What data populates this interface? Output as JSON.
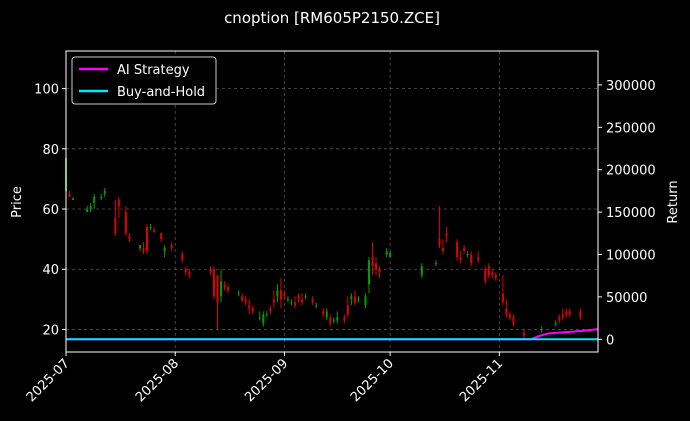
{
  "chart_data": {
    "type": "candlestick",
    "title": "cnoption [RM605P2150.ZCE]",
    "ylabel_left": "Price",
    "ylabel_right": "Return",
    "xlim": [
      "2025-07-01",
      "2025-11-29"
    ],
    "ylim_left": [
      12.5,
      112.5
    ],
    "ylim_right": [
      -15000,
      340000
    ],
    "x_ticks": [
      "2025-07",
      "2025-08",
      "2025-09",
      "2025-10",
      "2025-11"
    ],
    "x_tick_dates": [
      "2025-07-01",
      "2025-08-01",
      "2025-09-01",
      "2025-10-01",
      "2025-11-01"
    ],
    "y_ticks_left": [
      20,
      40,
      60,
      80,
      100
    ],
    "y_ticks_right": [
      0,
      50000,
      100000,
      150000,
      200000,
      250000,
      300000
    ],
    "grid": true,
    "legend": "upper-left",
    "colors": {
      "up": "#00a000",
      "down": "#e00000",
      "ai": "#ff00ff",
      "bh": "#00e5ff",
      "grid": "#555555",
      "axis": "#ffffff"
    },
    "series": [
      {
        "name": "AI Strategy",
        "points": [
          [
            "2025-07-01",
            0
          ],
          [
            "2025-11-10",
            0
          ],
          [
            "2025-11-12",
            3500
          ],
          [
            "2025-11-15",
            7000
          ],
          [
            "2025-11-20",
            8500
          ],
          [
            "2025-11-25",
            10000
          ],
          [
            "2025-11-29",
            12000
          ]
        ]
      },
      {
        "name": "Buy-and-Hold",
        "points": [
          [
            "2025-07-01",
            0
          ],
          [
            "2025-11-29",
            0
          ]
        ]
      }
    ],
    "candles": [
      [
        "2025-07-01",
        66,
        77,
        66,
        77
      ],
      [
        "2025-07-02",
        65,
        66,
        64,
        64
      ],
      [
        "2025-07-03",
        63,
        64,
        63,
        63.5
      ],
      [
        "2025-07-07",
        59,
        61,
        59,
        60
      ],
      [
        "2025-07-08",
        60,
        62,
        59,
        61
      ],
      [
        "2025-07-09",
        62,
        65,
        60,
        64
      ],
      [
        "2025-07-11",
        64,
        65,
        63,
        64
      ],
      [
        "2025-07-12",
        65,
        67,
        64,
        66
      ],
      [
        "2025-07-15",
        57,
        63,
        51,
        52
      ],
      [
        "2025-07-16",
        63,
        64,
        57,
        61
      ],
      [
        "2025-07-18",
        59,
        61,
        51,
        52
      ],
      [
        "2025-07-19",
        51,
        52,
        49,
        50
      ],
      [
        "2025-07-22",
        47,
        48,
        46,
        48
      ],
      [
        "2025-07-23",
        47,
        49,
        45,
        46
      ],
      [
        "2025-07-24",
        54,
        55,
        45,
        46
      ],
      [
        "2025-07-25",
        54,
        55,
        53,
        54
      ],
      [
        "2025-07-26",
        53,
        54,
        52,
        52.5
      ],
      [
        "2025-07-28",
        52,
        52,
        49,
        50
      ],
      [
        "2025-07-29",
        46,
        48,
        44,
        47
      ],
      [
        "2025-07-31",
        48,
        49,
        46,
        47
      ],
      [
        "2025-08-03",
        45,
        46,
        42,
        43
      ],
      [
        "2025-08-04",
        40,
        41,
        38,
        39
      ],
      [
        "2025-08-05",
        39,
        40,
        37,
        38
      ],
      [
        "2025-08-11",
        40,
        41,
        38,
        39
      ],
      [
        "2025-08-12",
        40,
        41,
        30,
        31
      ],
      [
        "2025-08-13",
        38,
        38,
        20,
        29
      ],
      [
        "2025-08-14",
        31,
        40,
        29,
        36
      ],
      [
        "2025-08-15",
        35,
        36,
        33,
        34
      ],
      [
        "2025-08-16",
        34,
        35,
        32,
        33
      ],
      [
        "2025-08-19",
        32,
        33,
        31,
        32
      ],
      [
        "2025-08-20",
        31,
        32,
        29,
        29.5
      ],
      [
        "2025-08-21",
        30,
        31,
        28,
        29
      ],
      [
        "2025-08-22",
        28,
        30,
        25,
        27
      ],
      [
        "2025-08-23",
        27,
        28,
        25,
        26
      ],
      [
        "2025-08-25",
        24,
        26,
        23,
        24
      ],
      [
        "2025-08-26",
        22,
        26,
        21,
        25
      ],
      [
        "2025-08-27",
        25,
        26,
        24,
        25
      ],
      [
        "2025-08-28",
        27,
        28,
        25,
        26
      ],
      [
        "2025-08-29",
        30,
        33,
        27,
        29
      ],
      [
        "2025-08-30",
        31,
        35,
        29,
        33
      ],
      [
        "2025-08-31",
        33,
        37,
        27,
        30
      ],
      [
        "2025-09-01",
        32,
        33,
        30,
        31
      ],
      [
        "2025-09-02",
        30,
        31,
        29,
        30
      ],
      [
        "2025-09-03",
        29,
        30,
        28,
        29
      ],
      [
        "2025-09-04",
        29,
        31,
        27,
        28
      ],
      [
        "2025-09-05",
        31,
        32,
        29,
        30
      ],
      [
        "2025-09-06",
        30,
        32,
        28,
        29
      ],
      [
        "2025-09-07",
        31,
        32,
        30,
        31
      ],
      [
        "2025-09-09",
        30,
        31,
        28,
        29
      ],
      [
        "2025-09-10",
        28,
        29,
        27,
        28
      ],
      [
        "2025-09-12",
        26,
        27,
        24,
        25
      ],
      [
        "2025-09-13",
        24,
        27,
        23,
        26
      ],
      [
        "2025-09-14",
        24,
        25,
        21,
        22
      ],
      [
        "2025-09-15",
        23,
        24,
        22,
        23
      ],
      [
        "2025-09-16",
        23,
        26,
        22,
        24
      ],
      [
        "2025-09-18",
        24,
        25,
        22,
        23
      ],
      [
        "2025-09-19",
        28,
        31,
        24,
        25
      ],
      [
        "2025-09-20",
        30,
        32,
        28,
        31
      ],
      [
        "2025-09-21",
        31,
        33,
        28,
        29
      ],
      [
        "2025-09-22",
        30,
        31,
        29,
        30
      ],
      [
        "2025-09-24",
        28,
        32,
        27,
        31
      ],
      [
        "2025-09-25",
        35,
        44,
        32,
        43
      ],
      [
        "2025-09-26",
        44,
        49,
        38,
        41
      ],
      [
        "2025-09-27",
        42,
        44,
        38,
        40
      ],
      [
        "2025-09-28",
        40,
        41,
        37,
        39
      ],
      [
        "2025-09-30",
        45,
        47,
        44,
        46
      ],
      [
        "2025-10-01",
        44,
        46,
        44,
        45.5
      ],
      [
        "2025-10-10",
        38,
        42,
        37,
        41
      ],
      [
        "2025-10-14",
        42,
        43,
        41,
        42
      ],
      [
        "2025-10-15",
        50,
        61,
        47,
        48
      ],
      [
        "2025-10-16",
        47,
        50,
        45,
        46
      ],
      [
        "2025-10-17",
        52,
        54,
        49,
        51
      ],
      [
        "2025-10-20",
        49,
        50,
        43,
        44
      ],
      [
        "2025-10-21",
        44,
        46,
        42,
        43
      ],
      [
        "2025-10-22",
        47,
        48,
        45,
        46
      ],
      [
        "2025-10-23",
        45,
        46,
        44,
        45
      ],
      [
        "2025-10-24",
        45,
        46,
        41,
        42
      ],
      [
        "2025-10-26",
        44,
        46,
        42,
        43
      ],
      [
        "2025-10-28",
        40,
        41,
        35,
        36
      ],
      [
        "2025-10-29",
        41,
        42,
        37,
        38
      ],
      [
        "2025-10-30",
        39,
        40,
        37,
        38
      ],
      [
        "2025-10-31",
        38,
        39,
        36,
        37
      ],
      [
        "2025-11-02",
        32,
        38,
        28,
        29
      ],
      [
        "2025-11-03",
        27,
        30,
        24,
        25
      ],
      [
        "2025-11-04",
        25,
        26,
        23,
        24
      ],
      [
        "2025-11-05",
        24,
        25,
        21,
        22
      ],
      [
        "2025-11-08",
        19,
        20,
        17,
        18
      ],
      [
        "2025-11-13",
        20,
        21,
        19,
        20
      ],
      [
        "2025-11-17",
        22,
        23,
        21,
        22
      ],
      [
        "2025-11-18",
        24,
        25,
        22,
        23
      ],
      [
        "2025-11-19",
        25,
        27,
        23,
        24
      ],
      [
        "2025-11-20",
        26,
        27,
        24,
        25
      ],
      [
        "2025-11-21",
        26,
        27,
        24,
        25
      ],
      [
        "2025-11-24",
        26,
        27,
        23,
        24
      ]
    ]
  }
}
